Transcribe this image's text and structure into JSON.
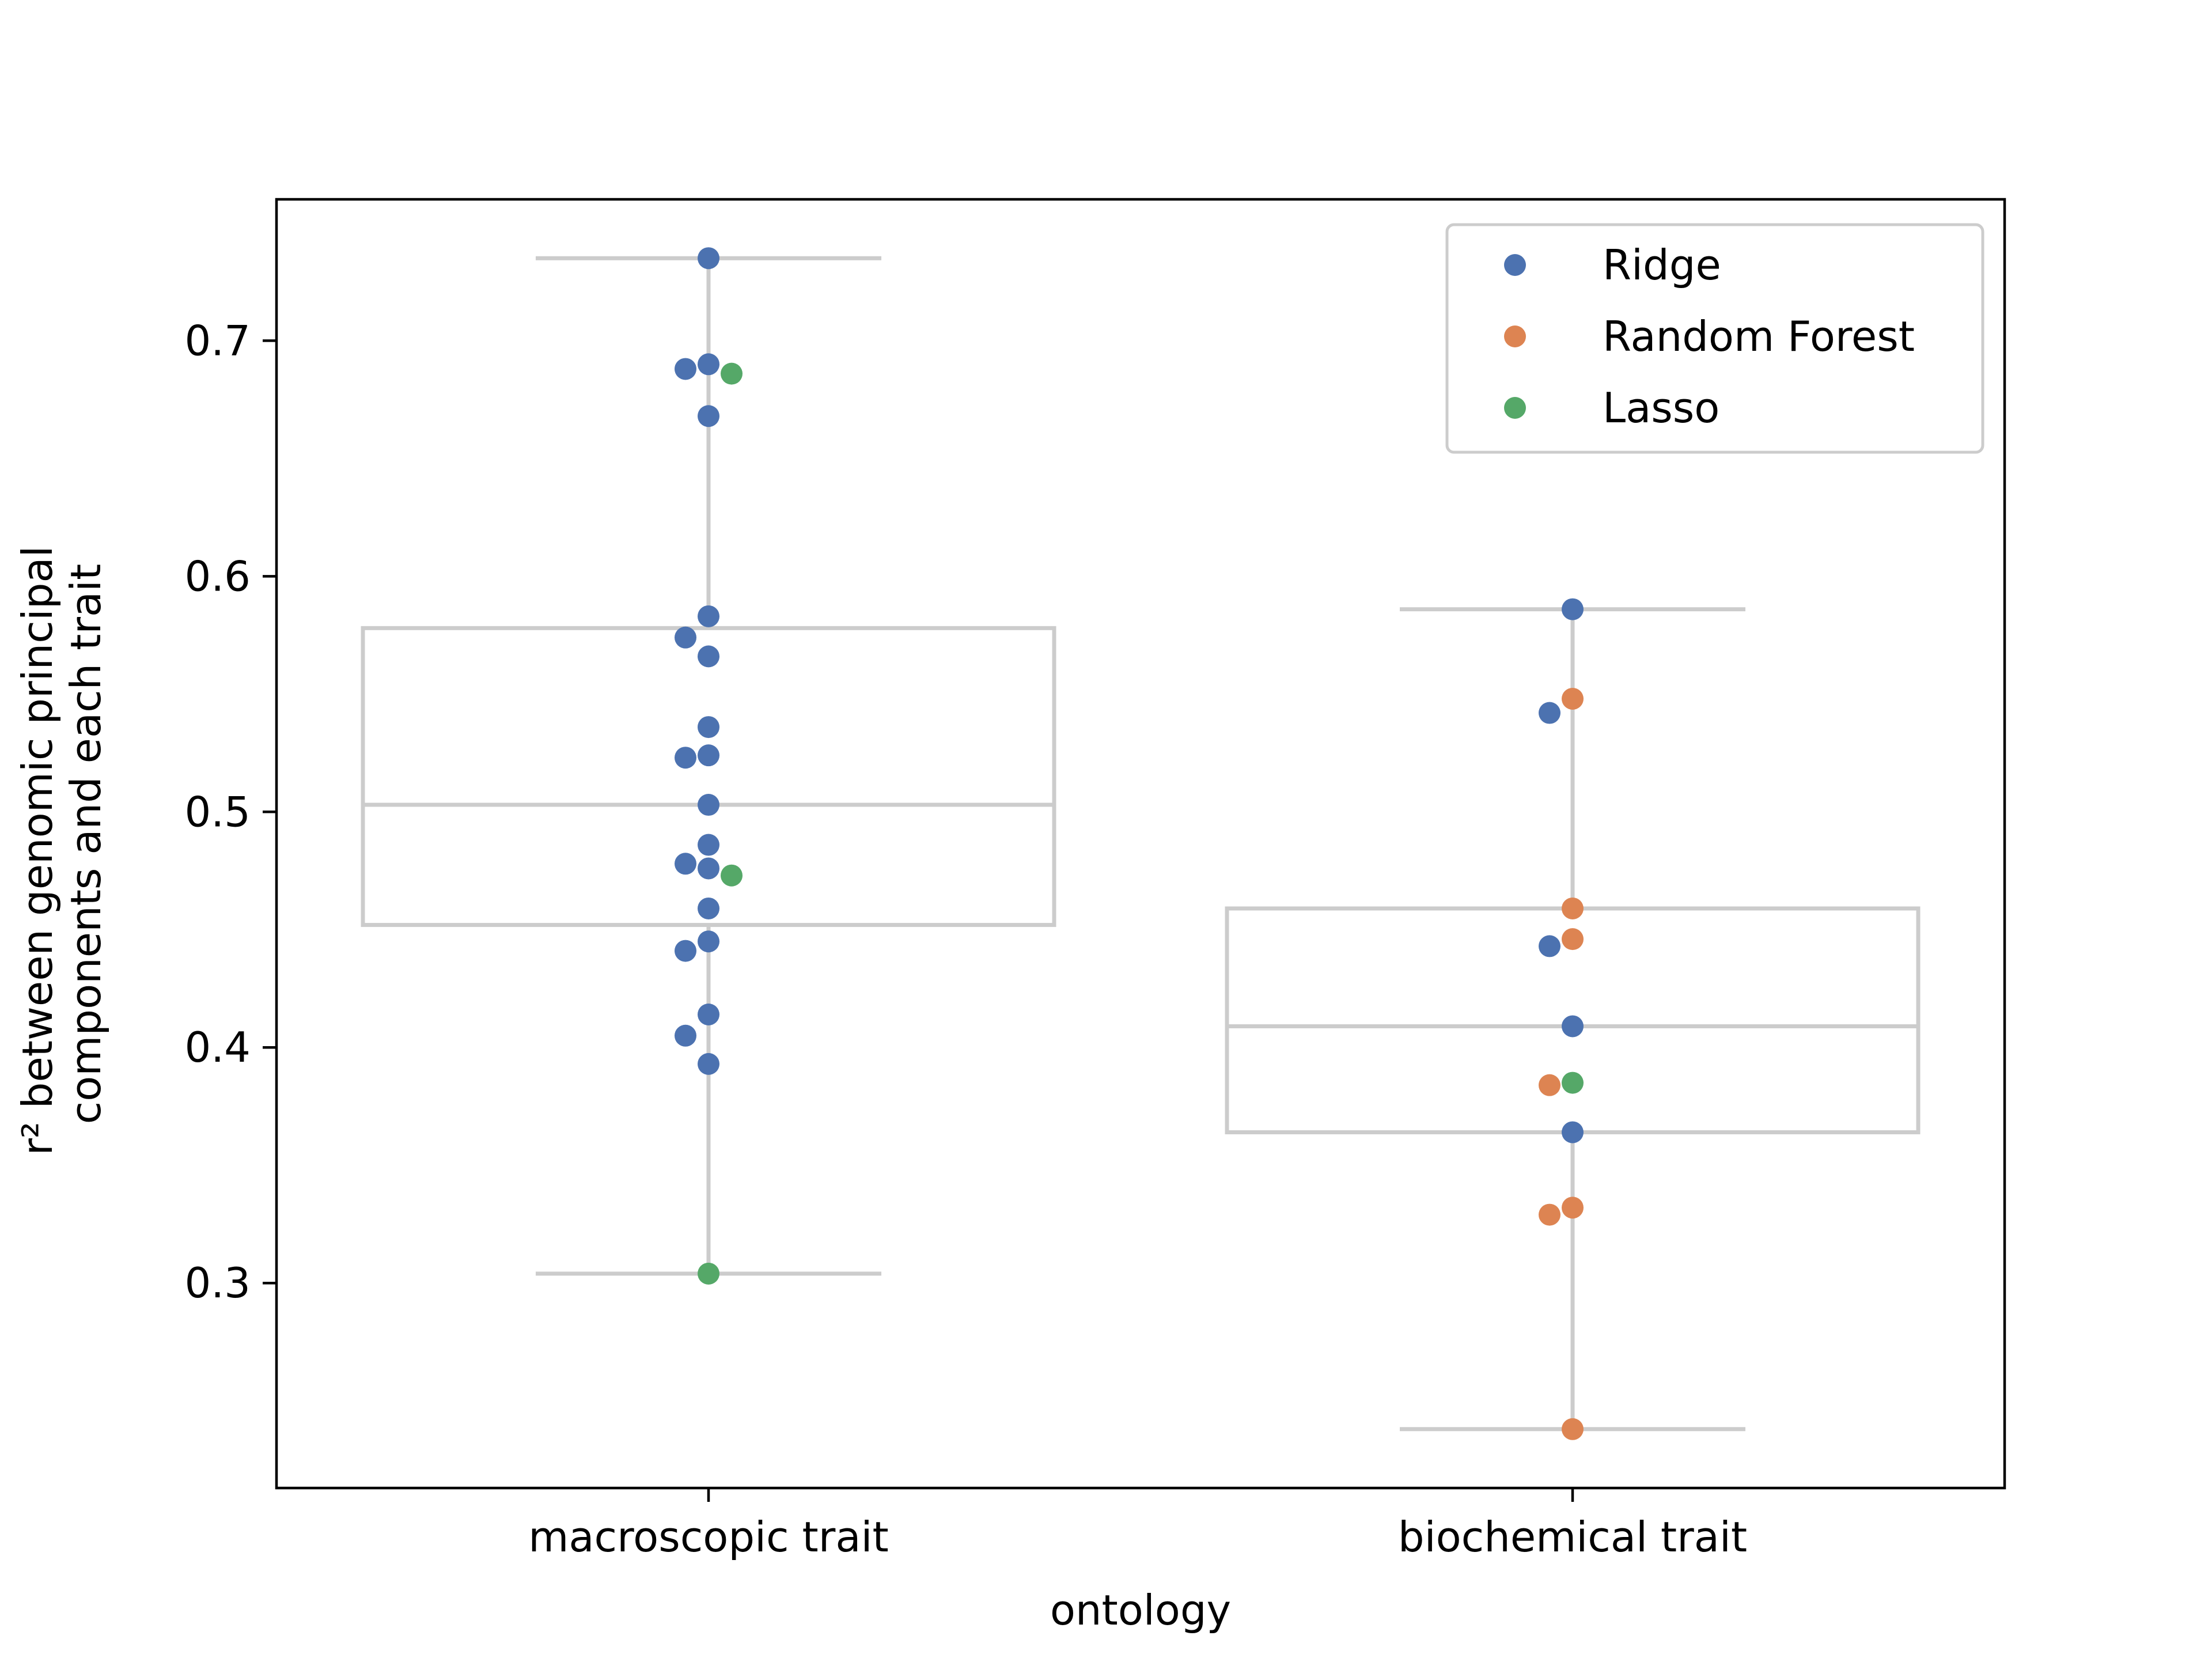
{
  "chart_data": {
    "type": "box+swarm",
    "title": "",
    "xlabel": "ontology",
    "ylabel_line1": "r² between genomic principal",
    "ylabel_line2": "components and each trait",
    "categories": [
      "macroscopic trait",
      "biochemical trait"
    ],
    "ylim": [
      0.213,
      0.76
    ],
    "yticks": [
      0.3,
      0.4,
      0.5,
      0.6,
      0.7
    ],
    "ytick_labels": [
      "0.3",
      "0.4",
      "0.5",
      "0.6",
      "0.7"
    ],
    "grid": false,
    "legend": {
      "placement": "top-right",
      "entries": [
        "Ridge",
        "Random Forest",
        "Lasso"
      ]
    },
    "colors": {
      "Ridge": "#4c72b0",
      "Random Forest": "#dd8452",
      "Lasso": "#55a868",
      "box": "#cccccc",
      "axes": "#000000"
    },
    "boxes": [
      {
        "category": "macroscopic trait",
        "whisker_low": 0.304,
        "q1": 0.452,
        "median": 0.503,
        "q3": 0.578,
        "whisker_high": 0.735
      },
      {
        "category": "biochemical trait",
        "whisker_low": 0.238,
        "q1": 0.364,
        "median": 0.409,
        "q3": 0.459,
        "whisker_high": 0.586
      }
    ],
    "series": [
      {
        "name": "Ridge",
        "points": [
          {
            "category": "macroscopic trait",
            "y": 0.735
          },
          {
            "category": "macroscopic trait",
            "y": 0.69
          },
          {
            "category": "macroscopic trait",
            "y": 0.688
          },
          {
            "category": "macroscopic trait",
            "y": 0.668
          },
          {
            "category": "macroscopic trait",
            "y": 0.583
          },
          {
            "category": "macroscopic trait",
            "y": 0.574
          },
          {
            "category": "macroscopic trait",
            "y": 0.566
          },
          {
            "category": "macroscopic trait",
            "y": 0.536
          },
          {
            "category": "macroscopic trait",
            "y": 0.524
          },
          {
            "category": "macroscopic trait",
            "y": 0.523
          },
          {
            "category": "macroscopic trait",
            "y": 0.503
          },
          {
            "category": "macroscopic trait",
            "y": 0.486
          },
          {
            "category": "macroscopic trait",
            "y": 0.478
          },
          {
            "category": "macroscopic trait",
            "y": 0.476
          },
          {
            "category": "macroscopic trait",
            "y": 0.459
          },
          {
            "category": "macroscopic trait",
            "y": 0.445
          },
          {
            "category": "macroscopic trait",
            "y": 0.441
          },
          {
            "category": "macroscopic trait",
            "y": 0.414
          },
          {
            "category": "macroscopic trait",
            "y": 0.405
          },
          {
            "category": "macroscopic trait",
            "y": 0.393
          },
          {
            "category": "biochemical trait",
            "y": 0.586
          },
          {
            "category": "biochemical trait",
            "y": 0.542
          },
          {
            "category": "biochemical trait",
            "y": 0.443
          },
          {
            "category": "biochemical trait",
            "y": 0.409
          },
          {
            "category": "biochemical trait",
            "y": 0.364
          }
        ]
      },
      {
        "name": "Random Forest",
        "points": [
          {
            "category": "biochemical trait",
            "y": 0.548
          },
          {
            "category": "biochemical trait",
            "y": 0.459
          },
          {
            "category": "biochemical trait",
            "y": 0.446
          },
          {
            "category": "biochemical trait",
            "y": 0.384
          },
          {
            "category": "biochemical trait",
            "y": 0.332
          },
          {
            "category": "biochemical trait",
            "y": 0.329
          },
          {
            "category": "biochemical trait",
            "y": 0.238
          }
        ]
      },
      {
        "name": "Lasso",
        "points": [
          {
            "category": "macroscopic trait",
            "y": 0.686
          },
          {
            "category": "macroscopic trait",
            "y": 0.473
          },
          {
            "category": "macroscopic trait",
            "y": 0.304
          },
          {
            "category": "biochemical trait",
            "y": 0.385
          }
        ]
      }
    ]
  }
}
